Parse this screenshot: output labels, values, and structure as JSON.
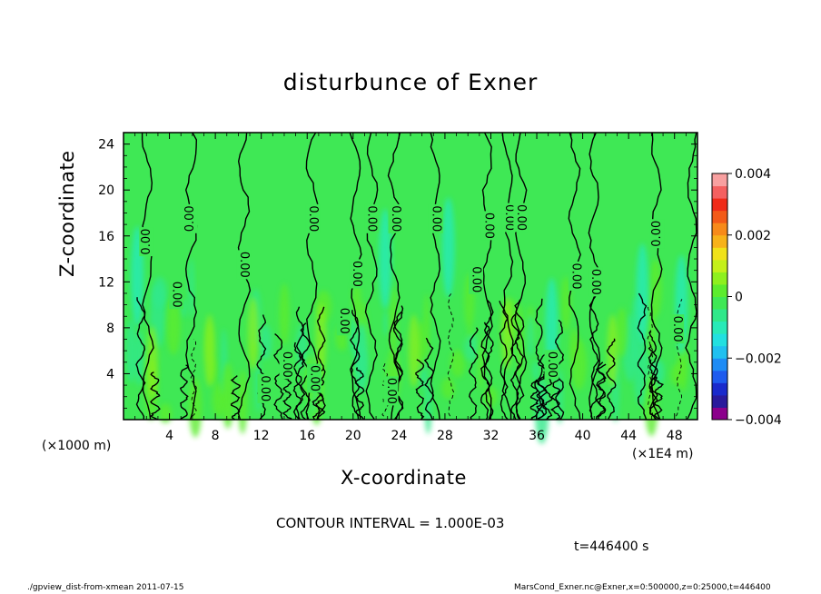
{
  "chart_data": {
    "type": "heatmap",
    "title": "disturbunce of Exner",
    "xlabel": "X-coordinate",
    "ylabel": "Z-coordinate",
    "x_unit_left": "(×1000 m)",
    "x_unit_right": "(×1E4 m)",
    "xlim": [
      0,
      50
    ],
    "ylim": [
      0,
      25
    ],
    "xticks": [
      4,
      8,
      12,
      16,
      20,
      24,
      28,
      32,
      36,
      40,
      44,
      48
    ],
    "yticks": [
      4,
      8,
      12,
      16,
      20,
      24
    ],
    "colorbar": {
      "ticks": [
        {
          "value": 0.004,
          "label": "0.004"
        },
        {
          "value": 0.002,
          "label": "0.002"
        },
        {
          "value": 0,
          "label": "0"
        },
        {
          "value": -0.002,
          "label": "−0.002"
        },
        {
          "value": -0.004,
          "label": "−0.004"
        }
      ],
      "range": [
        -0.004,
        0.004
      ],
      "colors": [
        "#8b008b",
        "#2a1a9c",
        "#1a2acc",
        "#1e5bee",
        "#1e8cf5",
        "#20c0f0",
        "#22e0e0",
        "#28eab8",
        "#30e88a",
        "#3fe855",
        "#5cec2e",
        "#8ef01e",
        "#c4f01a",
        "#f0e21a",
        "#f7b21a",
        "#f78a1a",
        "#f25a18",
        "#ef2a18",
        "#f46060",
        "#f8a0a0"
      ]
    },
    "contour_labels": [
      {
        "x": 2.0,
        "y": 15.5,
        "label": "0.00",
        "rot": -90
      },
      {
        "x": 4.6,
        "y": 10.9,
        "label": "0.00",
        "rot": 90
      },
      {
        "x": 5.8,
        "y": 17.5,
        "label": "0.00",
        "rot": -90
      },
      {
        "x": 10.5,
        "y": 13.5,
        "label": "0.00",
        "rot": 90
      },
      {
        "x": 12.3,
        "y": 2.7,
        "label": "0.00",
        "rot": 90
      },
      {
        "x": 14.2,
        "y": 4.8,
        "label": "0.00",
        "rot": 90
      },
      {
        "x": 16.5,
        "y": 17.5,
        "label": "0.00",
        "rot": 90
      },
      {
        "x": 16.6,
        "y": 3.6,
        "label": "0.00",
        "rot": 90
      },
      {
        "x": 19.2,
        "y": 8.6,
        "label": "0.00",
        "rot": 90
      },
      {
        "x": 20.3,
        "y": 12.7,
        "label": "0.00",
        "rot": 90
      },
      {
        "x": 21.6,
        "y": 17.5,
        "label": "0.00",
        "rot": 90
      },
      {
        "x": 23.7,
        "y": 17.5,
        "label": "0.00",
        "rot": 90
      },
      {
        "x": 23.3,
        "y": 2.5,
        "label": "0.00",
        "rot": 90
      },
      {
        "x": 27.2,
        "y": 17.5,
        "label": "0.00",
        "rot": 90
      },
      {
        "x": 30.7,
        "y": 12.2,
        "label": "0.00",
        "rot": 90
      },
      {
        "x": 31.8,
        "y": 16.9,
        "label": "0.00",
        "rot": 90
      },
      {
        "x": 33.6,
        "y": 17.6,
        "label": "0.00",
        "rot": 90
      },
      {
        "x": 34.6,
        "y": 17.6,
        "label": "0.00",
        "rot": 90
      },
      {
        "x": 37.3,
        "y": 4.8,
        "label": "0.00",
        "rot": 90
      },
      {
        "x": 39.4,
        "y": 12.5,
        "label": "0.00",
        "rot": 90
      },
      {
        "x": 41.1,
        "y": 12.0,
        "label": "0.00",
        "rot": 90
      },
      {
        "x": 46.5,
        "y": 16.2,
        "label": "0.00",
        "rot": -90
      },
      {
        "x": 48.2,
        "y": 7.9,
        "label": "0.00",
        "rot": 90
      }
    ]
  },
  "contour_interval": "CONTOUR INTERVAL = 1.000E-03",
  "time_label": "t=446400 s",
  "footer_left": "./gpview_dist-from-xmean  2011-07-15",
  "footer_right": "MarsCond_Exner.nc@Exner,x=0:500000,z=0:25000,t=446400"
}
